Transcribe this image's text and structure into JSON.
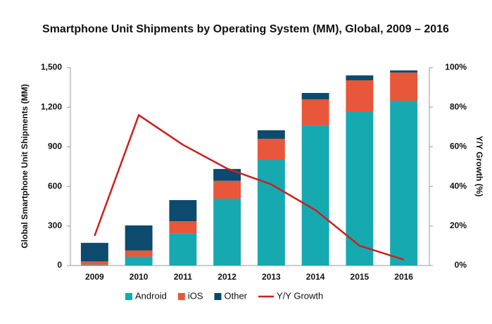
{
  "chart_data": {
    "type": "bar",
    "title": "Smartphone Unit Shipments by Operating System (MM), Global, 2009 – 2016",
    "y_label": "Global Smartphone Unit Shipments (MM)",
    "y2_label": "Y/Y Growth (%)",
    "categories": [
      "2009",
      "2010",
      "2011",
      "2012",
      "2013",
      "2014",
      "2015",
      "2016"
    ],
    "stacked": true,
    "series": [
      {
        "name": "Android",
        "color": "#17a9b0",
        "type": "bar",
        "values": [
          7,
          67,
          245,
          507,
          806,
          1062,
          1169,
          1249
        ]
      },
      {
        "name": "iOS",
        "color": "#e8573a",
        "type": "bar",
        "values": [
          25,
          47,
          91,
          135,
          155,
          198,
          235,
          214
        ]
      },
      {
        "name": "Other",
        "color": "#0c4a6e",
        "type": "bar",
        "values": [
          140,
          190,
          160,
          90,
          64,
          48,
          37,
          16
        ]
      },
      {
        "name": "Y/Y Growth",
        "color": "#cc1f1f",
        "type": "line",
        "axis": "y2",
        "values": [
          15,
          76,
          61,
          49,
          41,
          28,
          10,
          3
        ]
      }
    ],
    "ylim": [
      0,
      1500
    ],
    "yticks": [
      0,
      300,
      600,
      900,
      {
        "value": 1200,
        "label": "1,200"
      },
      {
        "value": 1500,
        "label": "1,500"
      }
    ],
    "y2lim": [
      0,
      100
    ],
    "y2ticks": [
      {
        "value": 0,
        "label": "0%"
      },
      {
        "value": 20,
        "label": "20%"
      },
      {
        "value": 40,
        "label": "40%"
      },
      {
        "value": 60,
        "label": "60%"
      },
      {
        "value": 80,
        "label": "80%"
      },
      {
        "value": 100,
        "label": "100%"
      }
    ],
    "legend": "bottom"
  }
}
